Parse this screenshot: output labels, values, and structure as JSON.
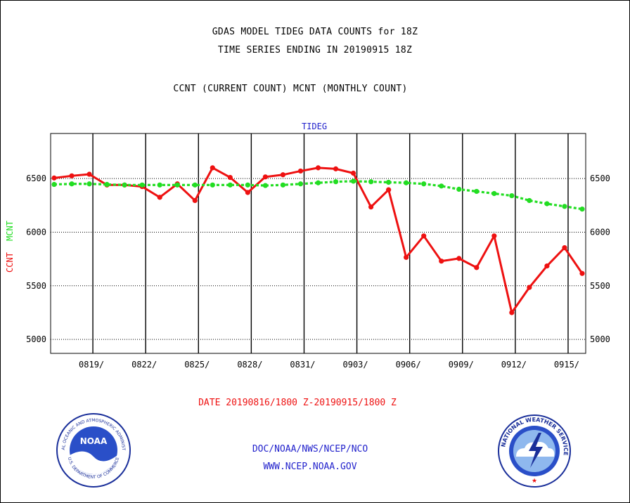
{
  "header": {
    "title_line1": "GDAS MODEL TIDEG DATA COUNTS for 18Z",
    "title_line2": "TIME SERIES ENDING IN 20190915 18Z",
    "subtitle": "CCNT (CURRENT COUNT) MCNT (MONTHLY COUNT)"
  },
  "footer": {
    "date_range": "DATE 20190816/1800 Z-20190915/1800 Z",
    "org": "DOC/NOAA/NWS/NCEP/NCO",
    "url": "WWW.NCEP.NOAA.GOV"
  },
  "logos": {
    "noaa_center": "NOAA",
    "noaa_ring_top": "NATIONAL OCEANIC AND ATMOSPHERIC ADMINISTRATION",
    "noaa_ring_bottom": "U.S. DEPARTMENT OF COMMERCE",
    "nws_ring": "NATIONAL WEATHER SERVICE"
  },
  "colors": {
    "ccnt": "#ee1111",
    "mcnt": "#22dd22",
    "label_blue": "#2222cc"
  },
  "chart_data": {
    "type": "line",
    "title": "TIDEG",
    "ylabel_ccnt": "CCNT",
    "ylabel_mcnt": "MCNT",
    "ylim": [
      4870,
      6920
    ],
    "yticks": [
      5000,
      5500,
      6000,
      6500
    ],
    "xlim": [
      -0.2,
      30.2
    ],
    "xticks": [
      {
        "x": 2.2,
        "label": "0819/"
      },
      {
        "x": 5.2,
        "label": "0822/"
      },
      {
        "x": 8.2,
        "label": "0825/"
      },
      {
        "x": 11.2,
        "label": "0828/"
      },
      {
        "x": 14.2,
        "label": "0831/"
      },
      {
        "x": 17.2,
        "label": "0903/"
      },
      {
        "x": 20.2,
        "label": "0906/"
      },
      {
        "x": 23.2,
        "label": "0909/"
      },
      {
        "x": 26.2,
        "label": "0912/"
      },
      {
        "x": 29.2,
        "label": "0915/"
      }
    ],
    "grid": true,
    "series": [
      {
        "key": "ccnt",
        "style": "solid",
        "x": [
          0,
          1,
          2,
          3,
          4,
          5,
          6,
          7,
          8,
          9,
          10,
          11,
          12,
          13,
          14,
          15,
          16,
          17,
          18,
          19,
          20,
          21,
          22,
          23,
          24,
          25,
          26,
          27,
          28,
          29,
          30
        ],
        "values": [
          6505,
          6525,
          6540,
          6440,
          6440,
          6425,
          6325,
          6450,
          6295,
          6600,
          6510,
          6370,
          6515,
          6535,
          6570,
          6600,
          6590,
          6550,
          6235,
          6395,
          5765,
          5965,
          5730,
          5755,
          5670,
          5965,
          5250,
          5485,
          5685,
          5855,
          5615
        ]
      },
      {
        "key": "mcnt",
        "style": "dashed",
        "x": [
          0,
          1,
          2,
          3,
          4,
          5,
          6,
          7,
          8,
          9,
          10,
          11,
          12,
          13,
          14,
          15,
          16,
          17,
          18,
          19,
          20,
          21,
          22,
          23,
          24,
          25,
          26,
          27,
          28,
          29,
          30
        ],
        "values": [
          6445,
          6450,
          6450,
          6445,
          6440,
          6440,
          6440,
          6440,
          6440,
          6440,
          6440,
          6440,
          6435,
          6440,
          6450,
          6460,
          6470,
          6475,
          6470,
          6465,
          6460,
          6450,
          6430,
          6400,
          6380,
          6360,
          6340,
          6295,
          6265,
          6240,
          6215
        ]
      }
    ]
  }
}
